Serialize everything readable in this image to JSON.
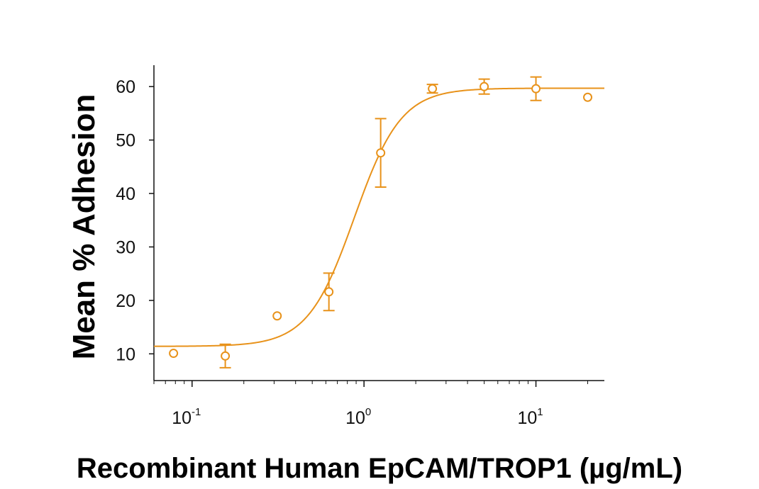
{
  "chart_data": {
    "type": "scatter",
    "title": "",
    "xlabel": "Recombinant Human EpCAM/TROP1 (µg/mL)",
    "ylabel": "Mean % Adhesion",
    "x_scale": "log",
    "xlim": [
      0.06,
      25
    ],
    "ylim": [
      5,
      64
    ],
    "x_ticks": [
      {
        "base": "10",
        "exp": "-1",
        "value": 0.1
      },
      {
        "base": "10",
        "exp": "0",
        "value": 1
      },
      {
        "base": "10",
        "exp": "1",
        "value": 10
      }
    ],
    "y_ticks": [
      10,
      20,
      30,
      40,
      50,
      60
    ],
    "grid": false,
    "color": "#E8921A",
    "series": [
      {
        "points": [
          {
            "x": 0.078,
            "y": 10.1,
            "err": null
          },
          {
            "x": 0.156,
            "y": 9.6,
            "err": 2.2
          },
          {
            "x": 0.3125,
            "y": 17.1,
            "err": null
          },
          {
            "x": 0.625,
            "y": 21.6,
            "err": 3.5
          },
          {
            "x": 1.25,
            "y": 47.6,
            "err": 6.4
          },
          {
            "x": 2.5,
            "y": 59.6,
            "err": 0.8
          },
          {
            "x": 5,
            "y": 60.0,
            "err": 1.4
          },
          {
            "x": 10,
            "y": 59.6,
            "err": 2.2
          },
          {
            "x": 20,
            "y": 58.0,
            "err": null
          }
        ]
      }
    ],
    "fit": {
      "bottom": 11.4,
      "top": 59.7,
      "ec50": 0.88,
      "hill": 3.2
    }
  }
}
